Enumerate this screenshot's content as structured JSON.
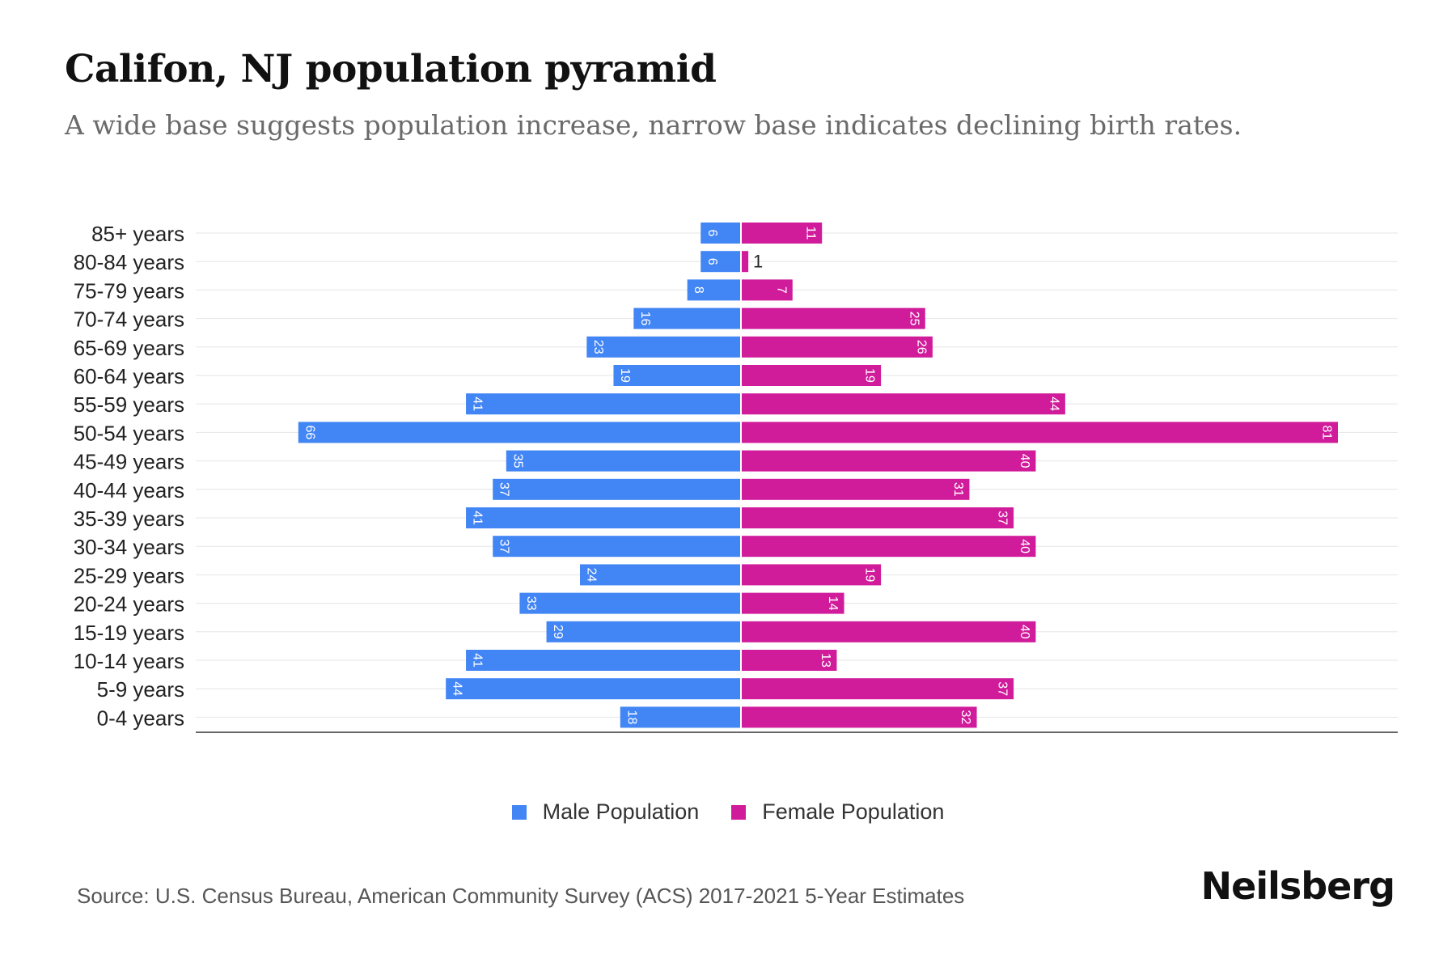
{
  "title": "Califon, NJ population pyramid",
  "subtitle": "A wide base suggests population increase, narrow base indicates declining birth rates.",
  "source": "Source: U.S. Census Bureau, American Community Survey (ACS) 2017-2021 5-Year Estimates",
  "brand": "Neilsberg",
  "colors": {
    "male": "#4285f4",
    "female": "#d01c9b"
  },
  "legend": {
    "male_label": "Male Population",
    "female_label": "Female Population"
  },
  "chart_data": {
    "type": "bar",
    "orientation": "horizontal-pyramid",
    "title": "Califon, NJ population pyramid",
    "categories": [
      "85+ years",
      "80-84 years",
      "75-79 years",
      "70-74 years",
      "65-69 years",
      "60-64 years",
      "55-59 years",
      "50-54 years",
      "45-49 years",
      "40-44 years",
      "35-39 years",
      "30-34 years",
      "25-29 years",
      "20-24 years",
      "15-19 years",
      "10-14 years",
      "5-9 years",
      "0-4 years"
    ],
    "series": [
      {
        "name": "Male Population",
        "values": [
          6,
          6,
          8,
          16,
          23,
          19,
          41,
          66,
          35,
          37,
          41,
          37,
          24,
          33,
          29,
          41,
          44,
          18
        ]
      },
      {
        "name": "Female Population",
        "values": [
          11,
          1,
          7,
          25,
          26,
          19,
          44,
          81,
          40,
          31,
          37,
          40,
          19,
          14,
          40,
          13,
          37,
          32
        ]
      }
    ],
    "xlim": [
      -81,
      81
    ],
    "grid": true,
    "legend_position": "bottom"
  }
}
